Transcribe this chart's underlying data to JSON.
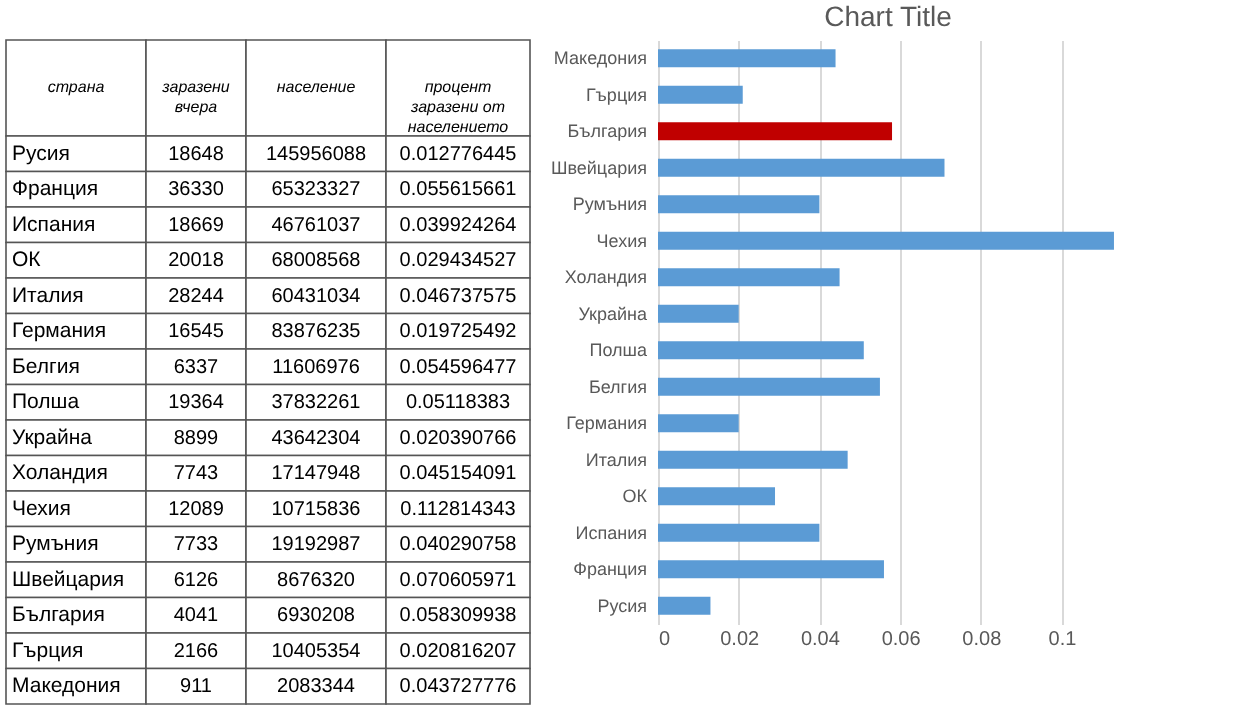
{
  "chart_data": [
    {
      "type": "other",
      "categories": [
        "страна",
        "заразени вчера",
        "население",
        "процент заразени от населението"
      ],
      "cell_labels": [
        [
          "Русия",
          "18648",
          "145956088",
          "0.012776445"
        ],
        [
          "Франция",
          "36330",
          "65323327",
          "0.055615661"
        ],
        [
          "Испания",
          "18669",
          "46761037",
          "0.039924264"
        ],
        [
          "ОК",
          "20018",
          "68008568",
          "0.029434527"
        ],
        [
          "Италия",
          "28244",
          "60431034",
          "0.046737575"
        ],
        [
          "Германия",
          "16545",
          "83876235",
          "0.019725492"
        ],
        [
          "Белгия",
          "6337",
          "11606976",
          "0.054596477"
        ],
        [
          "Полша",
          "19364",
          "37832261",
          "0.05118383"
        ],
        [
          "Украйна",
          "8899",
          "43642304",
          "0.020390766"
        ],
        [
          "Холандия",
          "7743",
          "17147948",
          "0.045154091"
        ],
        [
          "Чехия",
          "12089",
          "10715836",
          "0.112814343"
        ],
        [
          "Румъния",
          "7733",
          "19192987",
          "0.040290758"
        ],
        [
          "Швейцария",
          "6126",
          "8676320",
          "0.070605971"
        ],
        [
          "България",
          "4041",
          "6930208",
          "0.058309938"
        ],
        [
          "Гърция",
          "2166",
          "10405354",
          "0.020816207"
        ],
        [
          "Македония",
          "911",
          "2083344",
          "0.043727776"
        ]
      ]
    },
    {
      "type": "bar",
      "orientation": "horizontal",
      "title": "Chart Title",
      "categories": [
        "Македония",
        "Гърция",
        "България",
        "Швейцария",
        "Румъния",
        "Чехия",
        "Холандия",
        "Украйна",
        "Полша",
        "Белгия",
        "Германия",
        "Италия",
        "ОК",
        "Испания",
        "Франция",
        "Русия"
      ],
      "values": [
        0.044,
        0.021,
        0.058,
        0.071,
        0.04,
        0.113,
        0.045,
        0.02,
        0.051,
        0.055,
        0.02,
        0.047,
        0.029,
        0.04,
        0.056,
        0.013
      ],
      "colors": [
        "#5b9bd5",
        "#5b9bd5",
        "#c00000",
        "#5b9bd5",
        "#5b9bd5",
        "#5b9bd5",
        "#5b9bd5",
        "#5b9bd5",
        "#5b9bd5",
        "#5b9bd5",
        "#5b9bd5",
        "#5b9bd5",
        "#5b9bd5",
        "#5b9bd5",
        "#5b9bd5",
        "#5b9bd5"
      ],
      "xlim": [
        0,
        0.114
      ],
      "xticks": [
        0,
        0.02,
        0.04,
        0.06,
        0.08,
        0.1
      ],
      "grid": "x"
    }
  ]
}
